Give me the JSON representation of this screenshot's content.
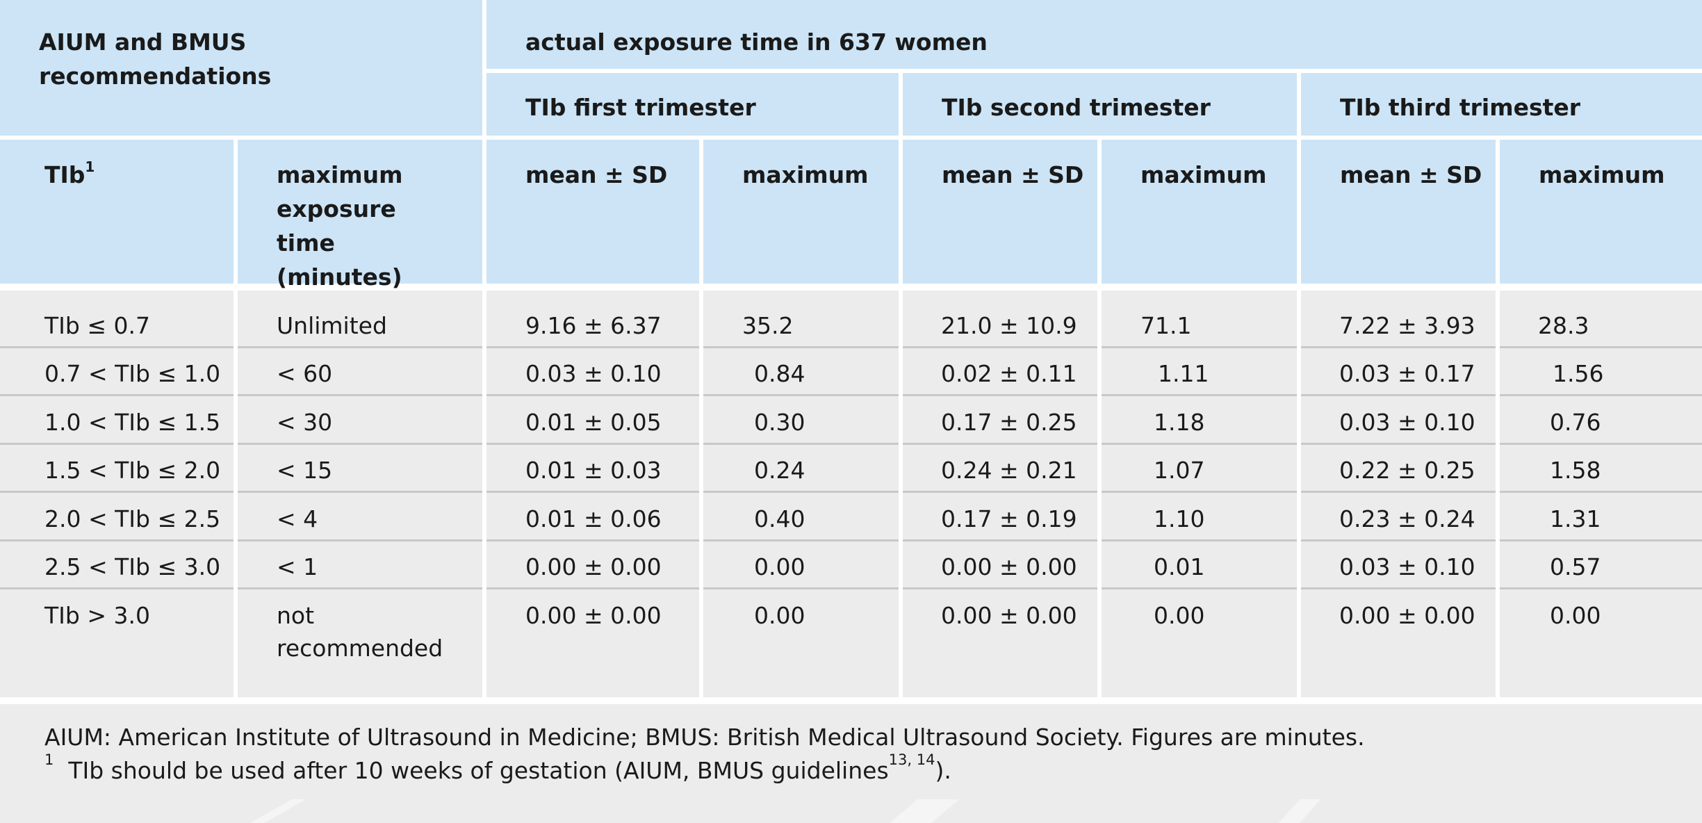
{
  "header": {
    "left_group": "AIUM and BMUS recommendations",
    "right_group": "actual exposure time in 637 women",
    "trimesters": [
      "TIb first trimester",
      "TIb second trimester",
      "TIb third trimester"
    ],
    "col_tib": "TIb",
    "col_tib_sup": "1",
    "col_max_exposure": "maximum exposure time (minutes)",
    "col_mean_sd": "mean ± SD",
    "col_maximum": "maximum"
  },
  "rows": [
    {
      "tib": "TIb ≤ 0.7",
      "max_exposure": "Unlimited",
      "t1_mean": "9.16 ± 6.37",
      "t1_max": "35.2",
      "t2_mean": "21.0 ± 10.9",
      "t2_max": "71.1",
      "t3_mean": "7.22 ± 3.93",
      "t3_max": "28.3"
    },
    {
      "tib": "0.7 < TIb ≤ 1.0",
      "max_exposure": "< 60",
      "t1_mean": "0.03 ± 0.10",
      "t1_max": "0.84",
      "t2_mean": "0.02 ± 0.11",
      "t2_max": "1.11",
      "t3_mean": "0.03 ± 0.17",
      "t3_max": "1.56"
    },
    {
      "tib": "1.0 < TIb ≤ 1.5",
      "max_exposure": "< 30",
      "t1_mean": "0.01 ± 0.05",
      "t1_max": "0.30",
      "t2_mean": "0.17 ± 0.25",
      "t2_max": "1.18",
      "t3_mean": "0.03 ± 0.10",
      "t3_max": "0.76"
    },
    {
      "tib": "1.5 < TIb ≤ 2.0",
      "max_exposure": "< 15",
      "t1_mean": "0.01 ± 0.03",
      "t1_max": "0.24",
      "t2_mean": "0.24 ± 0.21",
      "t2_max": "1.07",
      "t3_mean": "0.22 ± 0.25",
      "t3_max": "1.58"
    },
    {
      "tib": "2.0 < TIb ≤ 2.5",
      "max_exposure": "< 4",
      "t1_mean": "0.01 ± 0.06",
      "t1_max": "0.40",
      "t2_mean": "0.17 ± 0.19",
      "t2_max": "1.10",
      "t3_mean": "0.23 ± 0.24",
      "t3_max": "1.31"
    },
    {
      "tib": "2.5 < TIb ≤ 3.0",
      "max_exposure": "< 1",
      "t1_mean": "0.00 ± 0.00",
      "t1_max": "0.00",
      "t2_mean": "0.00 ± 0.00",
      "t2_max": "0.01",
      "t3_mean": "0.03 ± 0.10",
      "t3_max": "0.57"
    },
    {
      "tib": "TIb > 3.0",
      "max_exposure": "not recommended",
      "t1_mean": "0.00 ± 0.00",
      "t1_max": "0.00",
      "t2_mean": "0.00 ± 0.00",
      "t2_max": "0.00",
      "t3_mean": "0.00 ± 0.00",
      "t3_max": "0.00"
    }
  ],
  "footer": {
    "abbrev": "AIUM: American Institute of Ultrasound in Medicine; BMUS: British Medical Ultrasound Society. Figures are minutes.",
    "footnote_mark": "1",
    "footnote_text": "TIb should be used after 10 weeks of gestation (AIUM, BMUS guidelines",
    "footnote_refs": "13, 14",
    "footnote_end": ")."
  }
}
